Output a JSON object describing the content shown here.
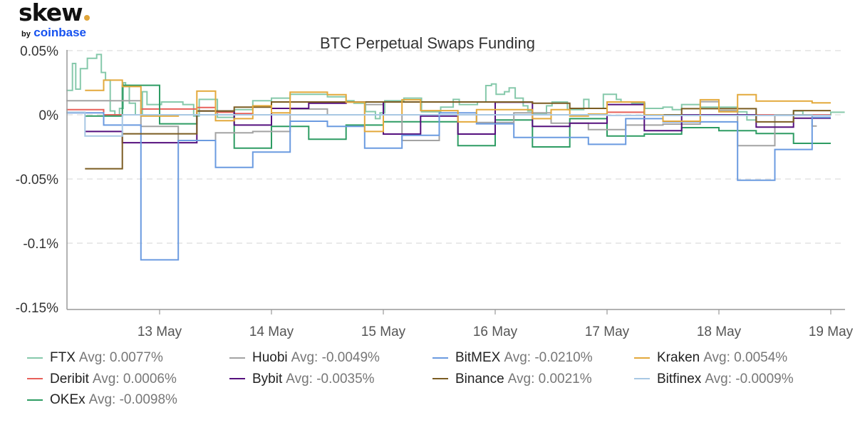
{
  "logo": {
    "word": "skew",
    "by": "by",
    "brand": "coinbase",
    "dot_color": "#e0a53a",
    "brand_color": "#1652f0"
  },
  "chart_data": {
    "type": "line",
    "step": true,
    "title": "BTC Perpetual Swaps Funding",
    "xlabel": "",
    "ylabel": "",
    "x_unit": "hours since 12 May 00:00",
    "xlim": [
      4,
      171
    ],
    "ylim": [
      -0.15,
      0.05
    ],
    "y_ticks": [
      {
        "value": 0.05,
        "label": "0.05%"
      },
      {
        "value": 0,
        "label": "0%"
      },
      {
        "value": -0.05,
        "label": "-0.05%"
      },
      {
        "value": -0.1,
        "label": "-0.1%"
      },
      {
        "value": -0.15,
        "label": "-0.15%"
      }
    ],
    "x_ticks": [
      {
        "value": 24,
        "label": "13 May"
      },
      {
        "value": 48,
        "label": "14 May"
      },
      {
        "value": 72,
        "label": "15 May"
      },
      {
        "value": 96,
        "label": "16 May"
      },
      {
        "value": 120,
        "label": "17 May"
      },
      {
        "value": 144,
        "label": "18 May"
      },
      {
        "value": 168,
        "label": "19 May"
      }
    ],
    "grid": "horizontal dashed",
    "legend_position": "bottom",
    "series": [
      {
        "name": "FTX",
        "avg_label": "Avg: 0.0077%",
        "color": "#86c9ab",
        "end": 171,
        "steps": [
          [
            4,
            0.019
          ],
          [
            5.3,
            0.04
          ],
          [
            6,
            0.02
          ],
          [
            7,
            0.036
          ],
          [
            8.5,
            0.044
          ],
          [
            10.5,
            0.047
          ],
          [
            11.5,
            0.033
          ],
          [
            12.4,
            0.027
          ],
          [
            13.4,
            0.003
          ],
          [
            14.4,
            0.0
          ],
          [
            15.4,
            0.005
          ],
          [
            16.2,
            0.025
          ],
          [
            16.7,
            0.023
          ],
          [
            17.5,
            0.009
          ],
          [
            18.8,
            0.0
          ],
          [
            20.3,
            0.018
          ],
          [
            21.3,
            0.008
          ],
          [
            24.4,
            0.01
          ],
          [
            29,
            0.008
          ],
          [
            31.3,
            -0.001
          ],
          [
            32.5,
            0.012
          ],
          [
            36.4,
            -0.002
          ],
          [
            40,
            0.004
          ],
          [
            44,
            0.011
          ],
          [
            48,
            0.013
          ],
          [
            52,
            0.016
          ],
          [
            60,
            0.014
          ],
          [
            64,
            0.011
          ],
          [
            65.7,
            0.009
          ],
          [
            68.2,
            0.0025
          ],
          [
            70.3,
            -0.003
          ],
          [
            71.3,
            0.0015
          ],
          [
            72.3,
            0.011
          ],
          [
            76.4,
            0.013
          ],
          [
            80.2,
            0.0024
          ],
          [
            84.3,
            0.006
          ],
          [
            87,
            0.012
          ],
          [
            88.3,
            0.008
          ],
          [
            92.2,
            0.01
          ],
          [
            94,
            0.0228
          ],
          [
            95.2,
            0.024
          ],
          [
            96.2,
            0.016
          ],
          [
            98,
            0.018
          ],
          [
            99,
            0.021
          ],
          [
            100.3,
            0.013
          ],
          [
            102,
            0.007
          ],
          [
            103,
            0.003
          ],
          [
            104,
            0.0006
          ],
          [
            107,
            0.007
          ],
          [
            108.2,
            0.01
          ],
          [
            111.5,
            0.004
          ],
          [
            115,
            0.012
          ],
          [
            116.1,
            0.005
          ],
          [
            119.2,
            0.016
          ],
          [
            122,
            0.012
          ],
          [
            123,
            0.01
          ],
          [
            125.3,
            0.009
          ],
          [
            128.1,
            0.005
          ],
          [
            132,
            0.006
          ],
          [
            134,
            0.004
          ],
          [
            136,
            0.008
          ],
          [
            140,
            0.006
          ],
          [
            148,
            0.0024
          ],
          [
            150,
            -0.004
          ],
          [
            152,
            0.0
          ],
          [
            160,
            0.003
          ],
          [
            162,
            0.0
          ],
          [
            168,
            0.002
          ]
        ]
      },
      {
        "name": "Deribit",
        "avg_label": "Avg: 0.0006%",
        "color": "#e8605a",
        "end": 168,
        "steps": [
          [
            4,
            0.004
          ],
          [
            12,
            0.0
          ],
          [
            20,
            0.0045
          ],
          [
            32,
            0.0057
          ],
          [
            36,
            0.002
          ],
          [
            40,
            0.001
          ],
          [
            44,
            0.0
          ],
          [
            120,
            0.002
          ],
          [
            128,
            0.0
          ]
        ]
      },
      {
        "name": "OKEx",
        "avg_label": "Avg: -0.0098%",
        "color": "#2e9c63",
        "end": 168,
        "steps": [
          [
            8,
            -0.001
          ],
          [
            16,
            0.023
          ],
          [
            24,
            -0.007
          ],
          [
            32,
            0.003
          ],
          [
            40,
            -0.026
          ],
          [
            48,
            -0.009
          ],
          [
            56,
            -0.019
          ],
          [
            64,
            -0.008
          ],
          [
            72,
            -0.0054
          ],
          [
            88,
            -0.024
          ],
          [
            96,
            -0.004
          ],
          [
            104,
            -0.025
          ],
          [
            112,
            -0.003
          ],
          [
            120,
            -0.0165
          ],
          [
            128,
            -0.015
          ],
          [
            136,
            -0.01
          ],
          [
            144,
            -0.0124
          ],
          [
            152,
            -0.0146
          ],
          [
            160,
            -0.0222
          ]
        ]
      },
      {
        "name": "Huobi",
        "avg_label": "Avg: -0.0049%",
        "color": "#a3a3a3",
        "end": 165,
        "steps": [
          [
            4,
            0.011
          ],
          [
            20,
            -0.009
          ],
          [
            28,
            -0.02
          ],
          [
            36,
            -0.014
          ],
          [
            44,
            -0.013
          ],
          [
            52,
            0.0045
          ],
          [
            60,
            0.0
          ],
          [
            68,
            0.008
          ],
          [
            72,
            0.0
          ],
          [
            76,
            -0.02
          ],
          [
            84,
            0.0
          ],
          [
            92,
            -0.006
          ],
          [
            100,
            0.0015
          ],
          [
            108,
            -0.0065
          ],
          [
            116,
            -0.0115
          ],
          [
            124,
            -0.008
          ],
          [
            132,
            -0.0072
          ],
          [
            140,
            0.0102
          ],
          [
            144,
            0.0033
          ],
          [
            148,
            -0.024
          ],
          [
            156,
            0.0
          ],
          [
            164,
            -0.0087
          ]
        ]
      },
      {
        "name": "Bybit",
        "avg_label": "Avg: -0.0035%",
        "color": "#55107e",
        "end": 168,
        "steps": [
          [
            8,
            -0.013
          ],
          [
            16,
            -0.0217
          ],
          [
            32,
            0.003
          ],
          [
            40,
            -0.008
          ],
          [
            48,
            0.005
          ],
          [
            56,
            0.009
          ],
          [
            64,
            0.01
          ],
          [
            72,
            -0.015
          ],
          [
            80,
            -0.001
          ],
          [
            88,
            -0.015
          ],
          [
            96,
            0.0098
          ],
          [
            104,
            -0.009
          ],
          [
            112,
            -0.0065
          ],
          [
            120,
            0.008
          ],
          [
            128,
            -0.0124
          ],
          [
            136,
            0.0
          ],
          [
            152,
            -0.0096
          ],
          [
            160,
            -0.0026
          ]
        ]
      },
      {
        "name": "BitMEX",
        "avg_label": "Avg: -0.0210%",
        "color": "#6b9be0",
        "end": 168,
        "steps": [
          [
            4,
            0.0015
          ],
          [
            12,
            -0.008
          ],
          [
            20,
            -0.113
          ],
          [
            28,
            -0.02
          ],
          [
            36,
            -0.041
          ],
          [
            44,
            -0.029
          ],
          [
            52,
            -0.005
          ],
          [
            60,
            -0.009
          ],
          [
            68,
            -0.026
          ],
          [
            76,
            -0.016
          ],
          [
            84,
            0.0015
          ],
          [
            92,
            -0.007
          ],
          [
            100,
            -0.0176
          ],
          [
            116,
            -0.023
          ],
          [
            124,
            -0.003
          ],
          [
            132,
            -0.0055
          ],
          [
            148,
            -0.051
          ],
          [
            156,
            -0.027
          ],
          [
            164,
            -0.002
          ]
        ]
      },
      {
        "name": "Binance",
        "avg_label": "Avg: 0.0021%",
        "color": "#7b5c22",
        "end": 168,
        "steps": [
          [
            8,
            -0.042
          ],
          [
            16,
            -0.0148
          ],
          [
            32,
            0.003
          ],
          [
            40,
            0.006
          ],
          [
            48,
            0.01
          ],
          [
            104,
            0.009
          ],
          [
            112,
            0.005
          ],
          [
            120,
            0.01
          ],
          [
            128,
            0.0
          ],
          [
            136,
            0.0048
          ],
          [
            152,
            -0.0055
          ],
          [
            160,
            0.0033
          ]
        ]
      },
      {
        "name": "Kraken",
        "avg_label": "Avg: 0.0054%",
        "color": "#e3a93c",
        "end": 168,
        "steps": [
          [
            8,
            0.019
          ],
          [
            12,
            0.027
          ],
          [
            16,
            0.022
          ],
          [
            20,
            -0.001
          ],
          [
            28,
            0.0
          ],
          [
            32,
            0.0185
          ],
          [
            36,
            -0.0046
          ],
          [
            40,
            -0.003
          ],
          [
            44,
            0.007
          ],
          [
            48,
            0.0015
          ],
          [
            52,
            0.0176
          ],
          [
            60,
            0.0157
          ],
          [
            64,
            0.0098
          ],
          [
            68,
            -0.013
          ],
          [
            72,
            0.0
          ],
          [
            76,
            0.0117
          ],
          [
            80,
            0.0033
          ],
          [
            88,
            -0.0055
          ],
          [
            92,
            0.004
          ],
          [
            104,
            -0.003
          ],
          [
            108,
            0.004
          ],
          [
            112,
            -0.001
          ],
          [
            116,
            0.0006
          ],
          [
            120,
            0.01
          ],
          [
            128,
            0.0
          ],
          [
            132,
            -0.005
          ],
          [
            140,
            0.0117
          ],
          [
            144,
            0.0024
          ],
          [
            148,
            0.0157
          ],
          [
            152,
            0.0107
          ],
          [
            164,
            0.0093
          ]
        ]
      },
      {
        "name": "Bitfinex",
        "avg_label": "Avg: -0.0009%",
        "color": "#a8c8e4",
        "end": 168,
        "steps": [
          [
            4,
            0.002
          ],
          [
            8,
            -0.0165
          ],
          [
            16,
            0.0
          ],
          [
            60,
            0.0
          ],
          [
            120,
            -0.0005
          ]
        ]
      }
    ]
  }
}
